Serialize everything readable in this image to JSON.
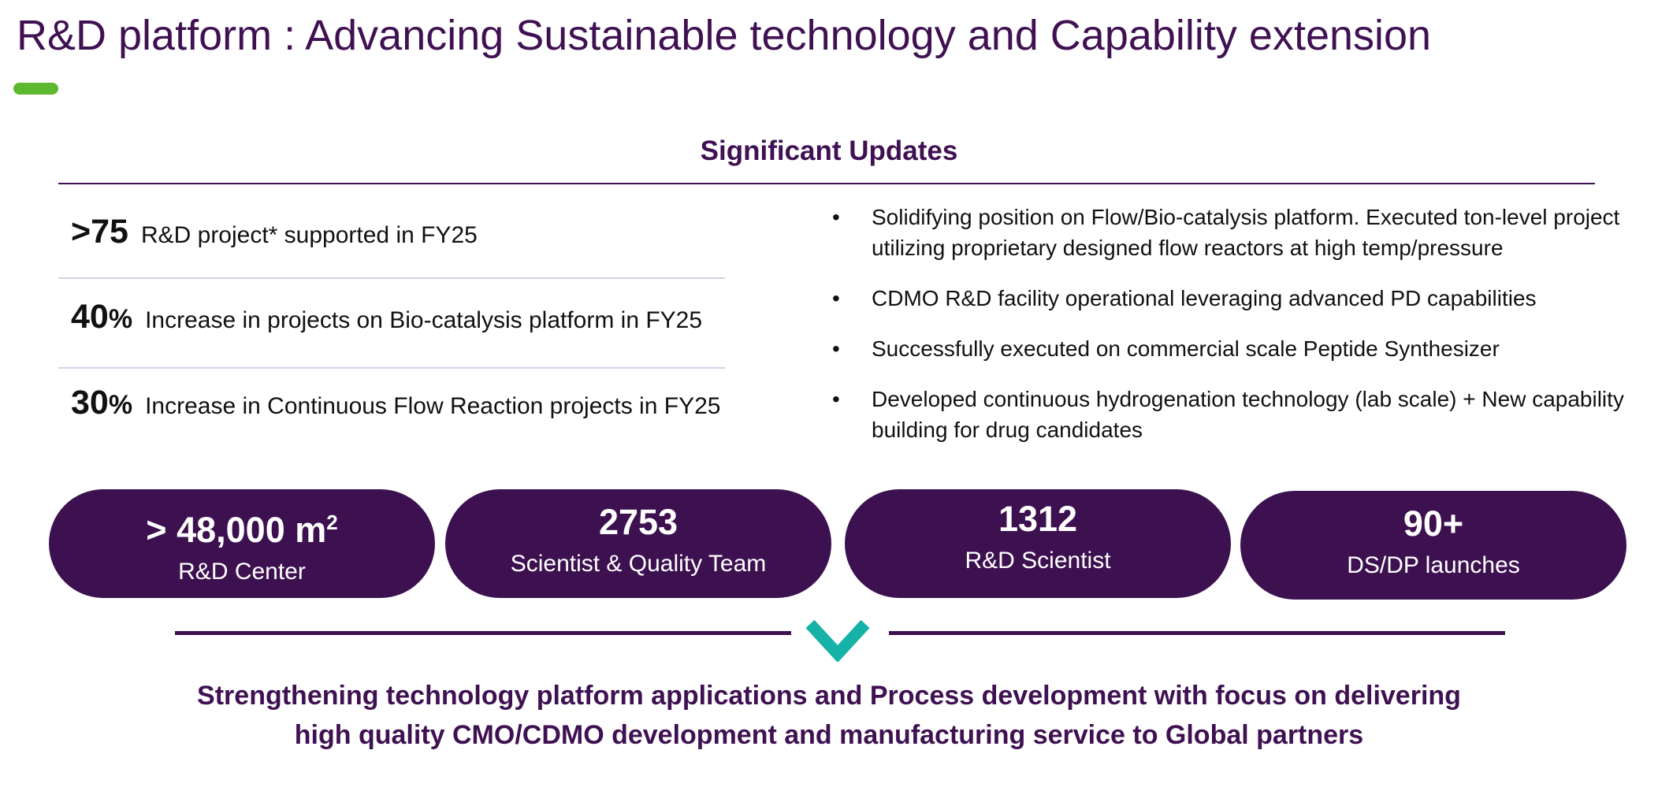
{
  "page": {
    "title": "R&D platform : Advancing Sustainable technology and Capability extension",
    "section_heading": "Significant  Updates"
  },
  "stats": [
    {
      "value": ">75",
      "unit": "",
      "text": "R&D project* supported in FY25"
    },
    {
      "value": "40",
      "unit": "%",
      "text": "Increase in projects on Bio-catalysis platform in FY25"
    },
    {
      "value": "30",
      "unit": "%",
      "text": "Increase in Continuous Flow Reaction projects in FY25"
    }
  ],
  "bullets": [
    "Solidifying position on Flow/Bio-catalysis platform. Executed ton-level project utilizing proprietary designed flow reactors at high temp/pressure",
    "CDMO R&D facility operational leveraging advanced PD capabilities",
    "Successfully executed on commercial scale Peptide Synthesizer",
    "Developed continuous hydrogenation technology (lab scale) + New capability building for  drug candidates"
  ],
  "bullet_glyph": "•",
  "highlights": [
    {
      "value": "> 48,000 m",
      "superscript": "2",
      "label": "R&D Center"
    },
    {
      "value": "2753",
      "superscript": "",
      "label": "Scientist & Quality Team"
    },
    {
      "value": "1312",
      "superscript": "",
      "label": "R&D Scientist"
    },
    {
      "value": "90+",
      "superscript": "",
      "label": "DS/DP launches"
    }
  ],
  "conclusion": {
    "line1": "Strengthening technology platform applications and Process development with focus on delivering",
    "line2": "high quality CMO/CDMO development and manufacturing service to Global partners"
  },
  "colors": {
    "brand_purple": "#3f1152",
    "pill_purple": "#3d1150",
    "accent_green": "#5cb82e",
    "chevron_teal": "#16b2a8",
    "divider": "#d3d1e6"
  },
  "icons": {
    "chevron": "chevron-down-icon"
  }
}
